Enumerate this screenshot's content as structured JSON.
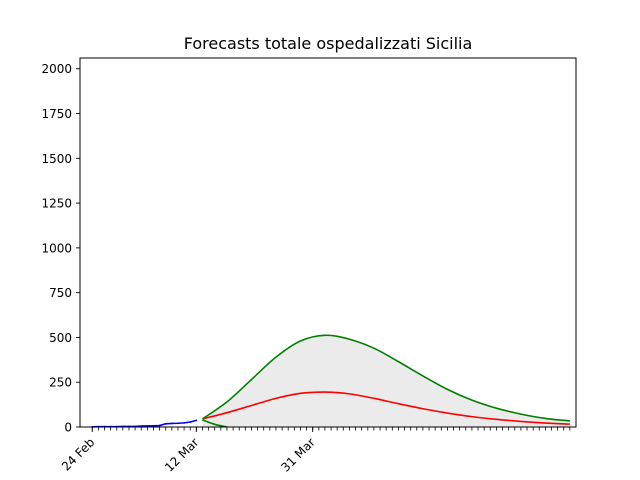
{
  "chart_data": {
    "type": "line",
    "title": "Forecasts totale ospedalizzati Sicilia",
    "xlabel": "",
    "ylabel": "",
    "x_start": "2020-02-22",
    "x_end": "2020-05-13",
    "ylim": [
      0,
      2060
    ],
    "yticks": [
      0,
      250,
      500,
      750,
      1000,
      1250,
      1500,
      1750,
      2000
    ],
    "ytick_labels": [
      "0",
      "250",
      "500",
      "750",
      "1000",
      "1250",
      "1500",
      "1750",
      "2000"
    ],
    "xticks": [
      {
        "date": "2020-02-24",
        "label": "24 Feb"
      },
      {
        "date": "2020-03-12",
        "label": "12 Mar"
      },
      {
        "date": "2020-03-31",
        "label": "31 Mar"
      }
    ],
    "grid": false,
    "legend": "none",
    "series": [
      {
        "color": "#0000ff",
        "x": [
          "2020-02-24",
          "2020-02-25",
          "2020-02-26",
          "2020-02-27",
          "2020-02-28",
          "2020-02-29",
          "2020-03-01",
          "2020-03-02",
          "2020-03-03",
          "2020-03-04",
          "2020-03-05",
          "2020-03-06",
          "2020-03-07",
          "2020-03-08",
          "2020-03-09",
          "2020-03-10",
          "2020-03-11",
          "2020-03-12"
        ],
        "values": [
          1,
          2,
          2,
          2,
          2,
          3,
          3,
          3,
          5,
          6,
          7,
          8,
          18,
          20,
          21,
          23,
          28,
          37
        ]
      },
      {
        "color": "#ff0000",
        "x": [
          "2020-03-13",
          "2020-03-17",
          "2020-03-21",
          "2020-03-25",
          "2020-03-29",
          "2020-04-02",
          "2020-04-06",
          "2020-04-10",
          "2020-04-14",
          "2020-04-18",
          "2020-04-22",
          "2020-04-26",
          "2020-04-30",
          "2020-05-04",
          "2020-05-08",
          "2020-05-12"
        ],
        "values": [
          45,
          80,
          120,
          160,
          188,
          195,
          185,
          160,
          130,
          102,
          78,
          58,
          43,
          31,
          22,
          16
        ]
      },
      {
        "color": "#008000",
        "x": [
          "2020-03-13",
          "2020-03-17",
          "2020-03-21",
          "2020-03-25",
          "2020-03-29",
          "2020-04-02",
          "2020-04-06",
          "2020-04-10",
          "2020-04-14",
          "2020-04-18",
          "2020-04-22",
          "2020-04-26",
          "2020-04-30",
          "2020-05-04",
          "2020-05-08",
          "2020-05-12"
        ],
        "values": [
          45,
          140,
          265,
          390,
          480,
          512,
          490,
          440,
          365,
          285,
          210,
          150,
          105,
          72,
          48,
          34
        ]
      },
      {
        "color": "#008000",
        "x": [
          "2020-03-13",
          "2020-03-15",
          "2020-03-17"
        ],
        "values": [
          40,
          15,
          0
        ]
      }
    ],
    "fill_between": {
      "color": "#ebebeb",
      "x": [
        "2020-03-13",
        "2020-03-17",
        "2020-03-21",
        "2020-03-25",
        "2020-03-29",
        "2020-04-02",
        "2020-04-06",
        "2020-04-10",
        "2020-04-14",
        "2020-04-18",
        "2020-04-22",
        "2020-04-26",
        "2020-04-30",
        "2020-05-04",
        "2020-05-08",
        "2020-05-12"
      ],
      "upper": [
        45,
        140,
        265,
        390,
        480,
        512,
        490,
        440,
        365,
        285,
        210,
        150,
        105,
        72,
        48,
        34
      ],
      "lower": [
        0,
        0,
        0,
        0,
        0,
        0,
        0,
        0,
        0,
        0,
        0,
        0,
        0,
        0,
        0,
        0
      ]
    }
  }
}
